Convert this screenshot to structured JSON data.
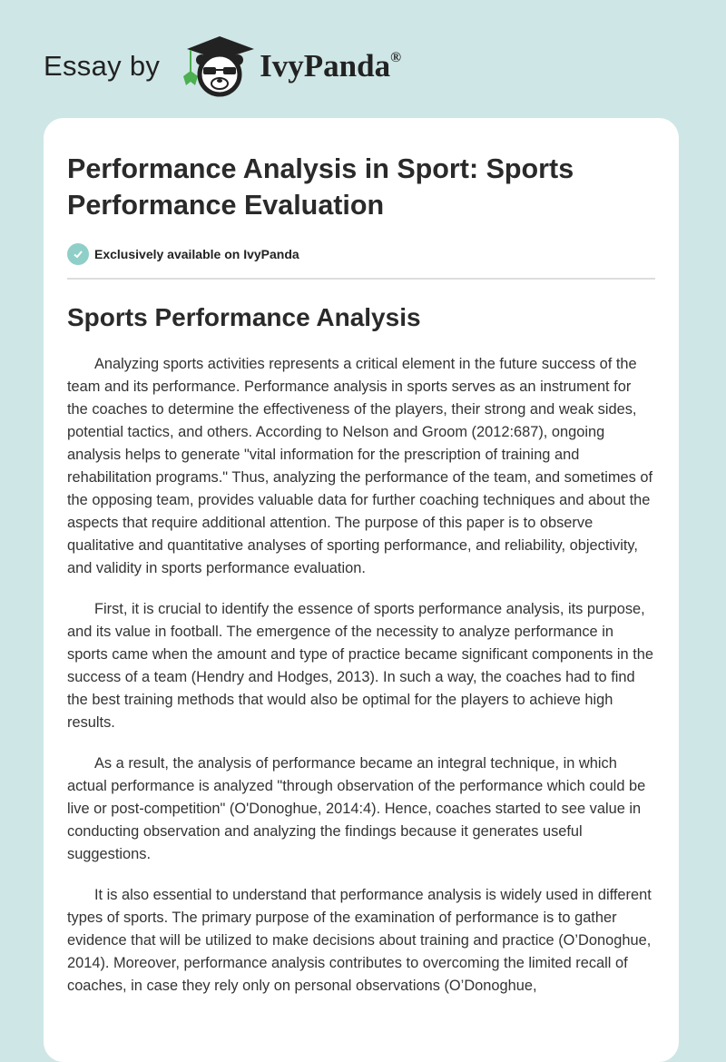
{
  "header": {
    "essay_by": "Essay by",
    "brand": "IvyPanda",
    "registered": "®"
  },
  "article": {
    "title": "Performance Analysis in Sport: Sports Performance Evaluation",
    "badge": "Exclusively available on IvyPanda",
    "section_heading": "Sports Performance Analysis",
    "paragraphs": [
      "Analyzing sports activities represents a critical element in the future success of the team and its performance. Performance analysis in sports serves as an instrument for the coaches to determine the effectiveness of the players, their strong and weak sides, potential tactics, and others. According to Nelson and Groom (2012:687), ongoing analysis helps to generate \"vital information for the prescription of training and rehabilitation programs.\" Thus, analyzing the performance of the team, and sometimes of the opposing team, provides valuable data for further coaching techniques and about the aspects that require additional attention. The purpose of this paper is to observe qualitative and quantitative analyses of sporting performance, and reliability, objectivity, and validity in sports performance evaluation.",
      "First, it is crucial to identify the essence of sports performance analysis, its purpose, and its value in football. The emergence of the necessity to analyze performance in sports came when the amount and type of practice became significant components in the success of a team (Hendry and Hodges, 2013). In such a way, the coaches had to find the best training methods that would also be optimal for the players to achieve high results.",
      "As a result, the analysis of performance became an integral technique, in which actual performance is analyzed \"through observation of the performance which could be live or post-competition\" (O'Donoghue, 2014:4). Hence, coaches started to see value in conducting observation and analyzing the findings because it generates useful suggestions.",
      "It is also essential to understand that performance analysis is widely used in different types of sports. The primary purpose of the examination of performance is to gather evidence that will be utilized to make decisions about training and practice (O’Donoghue, 2014). Moreover, performance analysis contributes to overcoming the limited recall of coaches, in case they rely only on personal observations (O’Donoghue,"
    ]
  },
  "colors": {
    "background": "#cfe6e6",
    "card": "#ffffff",
    "badge_check": "#8fcfc8",
    "ivy_green": "#4caf50"
  }
}
